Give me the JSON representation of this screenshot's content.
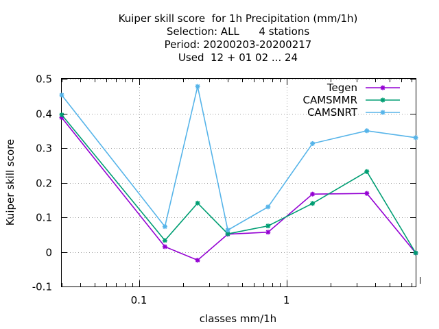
{
  "chart_data": {
    "type": "line",
    "title_lines": [
      "Kuiper skill score  for 1h Precipitation (mm/1h)",
      "Selection: ALL      4 stations",
      "Period: 20200203-20200217",
      "Used  12 + 01 02 ... 24"
    ],
    "xlabel": "classes mm/1h",
    "ylabel": "Kuiper skill score",
    "x_scale": "log",
    "xlim": [
      0.03,
      7.5
    ],
    "ylim": [
      -0.1,
      0.5
    ],
    "x_tick_values": [
      0.1,
      1
    ],
    "x_tick_labels": [
      "0.1",
      "1"
    ],
    "y_tick_values": [
      -0.1,
      0,
      0.1,
      0.2,
      0.3,
      0.4,
      0.5
    ],
    "y_tick_labels": [
      "-0.1",
      "0",
      "0.1",
      "0.2",
      "0.3",
      "0.4",
      "0.5"
    ],
    "grid": true,
    "legend_position": "top-right",
    "x": [
      0.03,
      0.15,
      0.25,
      0.4,
      0.75,
      1.5,
      3.5,
      7.5
    ],
    "series": [
      {
        "name": "Tegen",
        "color": "#9400d3",
        "values": [
          0.388,
          0.015,
          -0.024,
          0.051,
          0.057,
          0.167,
          0.169,
          -0.003
        ]
      },
      {
        "name": "CAMSMMR",
        "color": "#009e73",
        "values": [
          0.396,
          0.033,
          0.141,
          0.052,
          0.075,
          0.14,
          0.232,
          -0.003
        ]
      },
      {
        "name": "CAMSNRT",
        "color": "#56b4e9",
        "values": [
          0.453,
          0.073,
          0.478,
          0.063,
          0.13,
          0.313,
          0.35,
          0.33
        ]
      }
    ]
  }
}
